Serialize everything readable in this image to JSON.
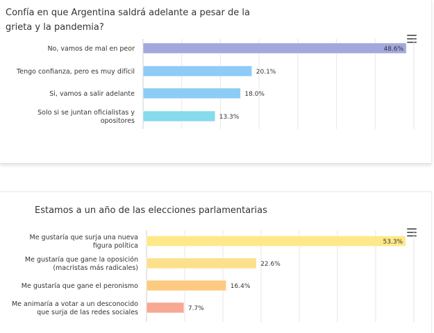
{
  "charts": [
    {
      "title": "Confía en que Argentina saldrá adelante a pesar de la grieta y la pandemia?",
      "menu_icon": "hamburger-menu-icon"
    },
    {
      "title": "Estamos a un año de las elecciones parlamentarias",
      "menu_icon": "hamburger-menu-icon"
    }
  ],
  "chart_data": [
    {
      "type": "bar",
      "orientation": "horizontal",
      "title": "Confía en que Argentina saldrá adelante a pesar de la grieta y la pandemia?",
      "categories": [
        [
          "No, vamos de mal en peor"
        ],
        [
          "Tengo confianza, pero es muy difícil"
        ],
        [
          "Si, vamos a salir adelante"
        ],
        [
          "Solo si se juntan oficialistas y",
          "opositores"
        ]
      ],
      "values": [
        48.6,
        20.1,
        18.0,
        13.3
      ],
      "value_labels": [
        "48.6%",
        "20.1%",
        "18.0%",
        "13.3%"
      ],
      "colors": [
        "#a3a8dc",
        "#8ecbf7",
        "#8dcdf5",
        "#86dbec"
      ],
      "xlim": [
        0,
        50
      ],
      "grid": true,
      "legend": "none"
    },
    {
      "type": "bar",
      "orientation": "horizontal",
      "title": "Estamos a un año de las elecciones parlamentarias",
      "categories": [
        [
          "Me gustaría que surja una nueva",
          "figura política"
        ],
        [
          "Me gustaría que gane la oposición",
          "(macristas más radicales)"
        ],
        [
          "Me gustaría que gane el peronismo"
        ],
        [
          "Me animaría a votar a un desconocido",
          "que surja de las redes sociales"
        ]
      ],
      "values": [
        53.3,
        22.6,
        16.4,
        7.7
      ],
      "value_labels": [
        "53.3%",
        "22.6%",
        "16.4%",
        "7.7%"
      ],
      "colors": [
        "#fde98a",
        "#fde08c",
        "#fdca82",
        "#f7a993"
      ],
      "xlim": [
        0,
        55
      ],
      "grid": true,
      "legend": "none"
    }
  ]
}
